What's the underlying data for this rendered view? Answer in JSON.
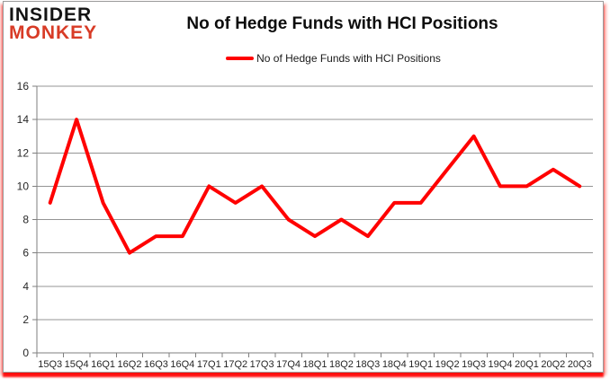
{
  "brand": {
    "line1": "INSIDER",
    "line2": "MONKEY",
    "insider_color": "#141414",
    "monkey_color": "#d83b26"
  },
  "header": {
    "title": "No of Hedge Funds with HCI Positions"
  },
  "legend": {
    "label": "No of Hedge Funds with HCI Positions",
    "swatch_color": "#ff0000"
  },
  "chart_data": {
    "type": "line",
    "title": "No of Hedge Funds with HCI Positions",
    "categories": [
      "15Q3",
      "15Q4",
      "16Q1",
      "16Q2",
      "16Q3",
      "16Q4",
      "17Q1",
      "17Q2",
      "17Q3",
      "17Q4",
      "18Q1",
      "18Q2",
      "18Q3",
      "18Q4",
      "19Q1",
      "19Q2",
      "19Q3",
      "19Q4",
      "20Q1",
      "20Q2",
      "20Q3"
    ],
    "series": [
      {
        "name": "No of Hedge Funds with HCI Positions",
        "color": "#ff0000",
        "values": [
          9,
          14,
          9,
          6,
          7,
          7,
          10,
          9,
          10,
          8,
          7,
          8,
          7,
          9,
          9,
          11,
          13,
          10,
          10,
          11,
          10
        ]
      }
    ],
    "xlabel": "",
    "ylabel": "",
    "ylim": [
      0,
      16
    ],
    "ytick_step": 2,
    "grid": true,
    "legend_position": "top-center",
    "gridline_color": "#949494",
    "axis_color": "#7f7f7f",
    "tick_label_color": "#262626"
  }
}
